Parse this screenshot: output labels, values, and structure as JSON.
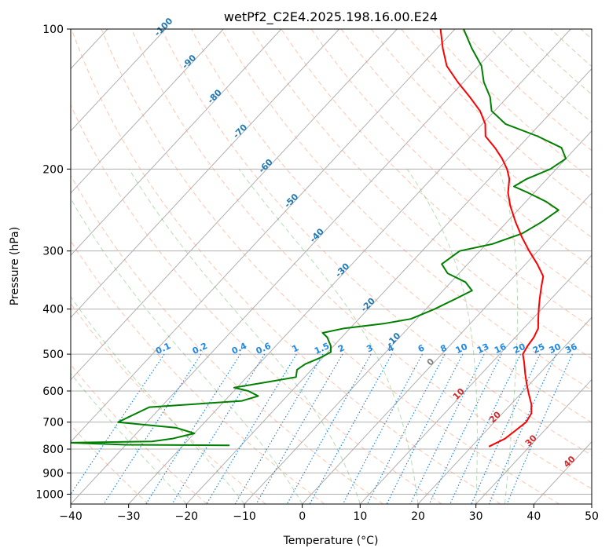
{
  "chart_data": {
    "type": "skew-t",
    "title": "wetPf2_C2E4.2025.198.16.00.E24",
    "xlabel": "Temperature (°C)",
    "ylabel": "Pressure (hPa)",
    "xlim": [
      -40,
      50
    ],
    "ylim_hpa": [
      1050,
      100
    ],
    "y_scale": "log",
    "x_ticks": [
      -40,
      -30,
      -20,
      -10,
      0,
      10,
      20,
      30,
      40,
      50
    ],
    "y_ticks": [
      100,
      200,
      300,
      400,
      500,
      600,
      700,
      800,
      900,
      1000
    ],
    "grid": true,
    "colors": {
      "temperature": "#ff0000",
      "dewpoint": "#008000",
      "isotherm_label": "#1f77b4",
      "mixing_ratio": "#1e88e5",
      "dry_adiabat": "#ff7f50",
      "moist_adiabat": "#2ca02c",
      "grid": "#b0b0b0"
    },
    "isotherm_labels": [
      {
        "t": -100,
        "label": "-100"
      },
      {
        "t": -90,
        "label": "-90"
      },
      {
        "t": -80,
        "label": "-80"
      },
      {
        "t": -70,
        "label": "-70"
      },
      {
        "t": -60,
        "label": "-60"
      },
      {
        "t": -50,
        "label": "-50"
      },
      {
        "t": -40,
        "label": "-40"
      },
      {
        "t": -30,
        "label": "-30"
      },
      {
        "t": -20,
        "label": "-20"
      },
      {
        "t": -10,
        "label": "-10"
      }
    ],
    "warm_isotherm_labels": [
      {
        "t": 0,
        "label": "0",
        "p": 525
      },
      {
        "t": 10,
        "label": "10",
        "p": 615
      },
      {
        "t": 20,
        "label": "20",
        "p": 690
      },
      {
        "t": 30,
        "label": "30",
        "p": 775
      },
      {
        "t": 40,
        "label": "40",
        "p": 860
      }
    ],
    "mixing_ratio_labels": [
      "0.1",
      "0.2",
      "0.4",
      "0.6",
      "1",
      "1.5",
      "2",
      "3",
      "4",
      "6",
      "8",
      "10",
      "13",
      "16",
      "20",
      "25",
      "30",
      "36"
    ],
    "mixing_ratio_values": [
      0.1,
      0.2,
      0.4,
      0.6,
      1,
      1.5,
      2,
      3,
      4,
      6,
      8,
      10,
      13,
      16,
      20,
      25,
      30,
      36
    ],
    "temperature_profile": [
      {
        "p": 790,
        "t": 23.0
      },
      {
        "p": 760,
        "t": 24.5
      },
      {
        "p": 730,
        "t": 25.0
      },
      {
        "p": 700,
        "t": 25.5
      },
      {
        "p": 670,
        "t": 25.0
      },
      {
        "p": 640,
        "t": 23.5
      },
      {
        "p": 610,
        "t": 21.5
      },
      {
        "p": 580,
        "t": 19.5
      },
      {
        "p": 550,
        "t": 17.5
      },
      {
        "p": 520,
        "t": 15.5
      },
      {
        "p": 500,
        "t": 14.0
      },
      {
        "p": 480,
        "t": 13.5
      },
      {
        "p": 460,
        "t": 13.2
      },
      {
        "p": 440,
        "t": 12.5
      },
      {
        "p": 420,
        "t": 11.0
      },
      {
        "p": 400,
        "t": 9.5
      },
      {
        "p": 380,
        "t": 8.0
      },
      {
        "p": 360,
        "t": 6.5
      },
      {
        "p": 340,
        "t": 5.0
      },
      {
        "p": 320,
        "t": 2.0
      },
      {
        "p": 300,
        "t": -1.5
      },
      {
        "p": 280,
        "t": -5.0
      },
      {
        "p": 260,
        "t": -8.5
      },
      {
        "p": 240,
        "t": -12.0
      },
      {
        "p": 225,
        "t": -14.5
      },
      {
        "p": 210,
        "t": -16.5
      },
      {
        "p": 200,
        "t": -18.5
      },
      {
        "p": 190,
        "t": -21.0
      },
      {
        "p": 180,
        "t": -24.0
      },
      {
        "p": 170,
        "t": -27.5
      },
      {
        "p": 160,
        "t": -29.5
      },
      {
        "p": 150,
        "t": -32.5
      },
      {
        "p": 140,
        "t": -36.5
      },
      {
        "p": 130,
        "t": -41.0
      },
      {
        "p": 120,
        "t": -45.5
      },
      {
        "p": 110,
        "t": -49.0
      },
      {
        "p": 100,
        "t": -52.5
      }
    ],
    "dewpoint_profile": [
      {
        "p": 785,
        "t": -22.0
      },
      {
        "p": 783,
        "t": -40.0
      },
      {
        "p": 775,
        "t": -50.0
      },
      {
        "p": 770,
        "t": -36.0
      },
      {
        "p": 760,
        "t": -33.0
      },
      {
        "p": 740,
        "t": -30.0
      },
      {
        "p": 720,
        "t": -34.0
      },
      {
        "p": 700,
        "t": -45.0
      },
      {
        "p": 650,
        "t": -42.0
      },
      {
        "p": 630,
        "t": -27.0
      },
      {
        "p": 615,
        "t": -25.0
      },
      {
        "p": 600,
        "t": -27.5
      },
      {
        "p": 590,
        "t": -30.5
      },
      {
        "p": 575,
        "t": -26.0
      },
      {
        "p": 560,
        "t": -21.5
      },
      {
        "p": 540,
        "t": -22.5
      },
      {
        "p": 525,
        "t": -22.0
      },
      {
        "p": 510,
        "t": -20.5
      },
      {
        "p": 495,
        "t": -19.5
      },
      {
        "p": 480,
        "t": -20.5
      },
      {
        "p": 460,
        "t": -22.5
      },
      {
        "p": 450,
        "t": -24.0
      },
      {
        "p": 440,
        "t": -21.0
      },
      {
        "p": 430,
        "t": -15.0
      },
      {
        "p": 420,
        "t": -11.0
      },
      {
        "p": 400,
        "t": -8.5
      },
      {
        "p": 380,
        "t": -6.5
      },
      {
        "p": 365,
        "t": -5.0
      },
      {
        "p": 350,
        "t": -7.5
      },
      {
        "p": 335,
        "t": -12.0
      },
      {
        "p": 320,
        "t": -14.5
      },
      {
        "p": 300,
        "t": -13.5
      },
      {
        "p": 290,
        "t": -9.0
      },
      {
        "p": 275,
        "t": -5.5
      },
      {
        "p": 260,
        "t": -4.0
      },
      {
        "p": 245,
        "t": -3.0
      },
      {
        "p": 235,
        "t": -6.5
      },
      {
        "p": 225,
        "t": -11.0
      },
      {
        "p": 218,
        "t": -14.5
      },
      {
        "p": 210,
        "t": -13.5
      },
      {
        "p": 200,
        "t": -11.0
      },
      {
        "p": 190,
        "t": -10.0
      },
      {
        "p": 180,
        "t": -12.5
      },
      {
        "p": 170,
        "t": -18.5
      },
      {
        "p": 160,
        "t": -26.0
      },
      {
        "p": 150,
        "t": -30.5
      },
      {
        "p": 140,
        "t": -33.0
      },
      {
        "p": 130,
        "t": -36.5
      },
      {
        "p": 120,
        "t": -39.5
      },
      {
        "p": 110,
        "t": -44.0
      },
      {
        "p": 100,
        "t": -48.5
      }
    ]
  }
}
